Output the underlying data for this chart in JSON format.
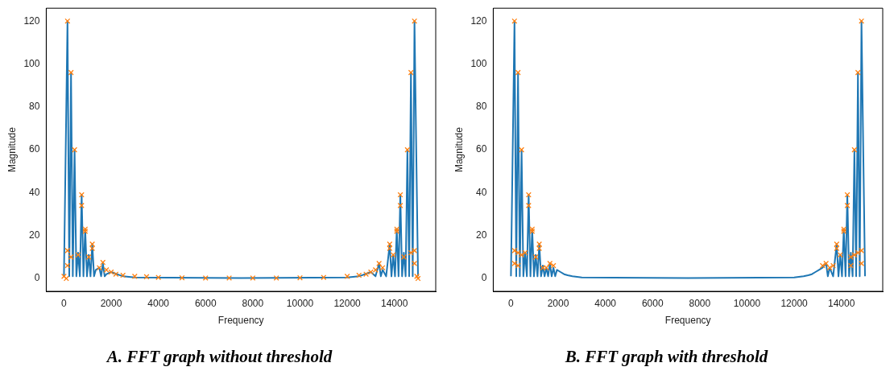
{
  "chart_data": [
    {
      "type": "line",
      "title": "A. FFT graph without threshold",
      "xlabel": "Frequency",
      "ylabel": "Magnitude",
      "xlim": [
        -750,
        15750
      ],
      "ylim": [
        -6,
        126
      ],
      "xticks": [
        0,
        2000,
        4000,
        6000,
        8000,
        10000,
        12000,
        14000
      ],
      "yticks": [
        0,
        20,
        40,
        60,
        80,
        100,
        120
      ],
      "grid": false,
      "legend": false,
      "series": [
        {
          "type": "line",
          "color": "#1f77b4",
          "marker": "none",
          "x": [
            0,
            150,
            225,
            300,
            375,
            450,
            525,
            600,
            675,
            750,
            825,
            900,
            975,
            1050,
            1125,
            1200,
            1275,
            1350,
            1500,
            1575,
            1650,
            1725,
            1800,
            2000,
            2500,
            3000,
            7500,
            12000,
            12500,
            13000,
            13200,
            13350,
            13425,
            13500,
            13650,
            13800,
            13875,
            13950,
            14025,
            14100,
            14175,
            14250,
            14325,
            14400,
            14475,
            14550,
            14625,
            14700,
            14775,
            14850,
            15000
          ],
          "values": [
            1,
            120,
            1,
            96,
            1,
            60,
            1,
            12,
            1,
            39,
            1,
            23,
            1,
            11,
            1,
            16,
            1,
            4,
            5,
            1,
            7,
            1,
            2,
            3,
            1,
            0.5,
            0.2,
            0.5,
            1,
            3,
            1,
            7,
            1,
            4,
            1,
            16,
            1,
            11,
            1,
            23,
            1,
            39,
            1,
            12,
            1,
            60,
            1,
            96,
            1,
            120,
            1
          ]
        },
        {
          "type": "scatter",
          "color": "#ff7f0e",
          "marker": "cross",
          "x": [
            150,
            300,
            450,
            750,
            750,
            900,
            900,
            1200,
            1200,
            150,
            150,
            300,
            600,
            1050,
            1650,
            1500,
            1800,
            2000,
            2200,
            2500,
            3000,
            3500,
            4000,
            5000,
            6000,
            7000,
            8000,
            9000,
            10000,
            11000,
            12000,
            12500,
            12800,
            13000,
            13200,
            13350,
            13500,
            13800,
            13800,
            13950,
            14100,
            14100,
            14250,
            14250,
            14550,
            14700,
            14850,
            14850,
            14850,
            14700,
            14400,
            0,
            100,
            15000,
            14950
          ],
          "values": [
            120,
            96,
            60,
            39,
            34,
            23,
            22,
            16,
            14,
            13,
            6,
            10,
            11,
            10,
            7.5,
            5,
            4,
            3,
            2,
            1.5,
            1,
            0.8,
            0.5,
            0.3,
            0.2,
            0.2,
            0.2,
            0.2,
            0.3,
            0.5,
            1,
            1.5,
            2,
            3,
            4,
            7,
            5,
            16,
            14,
            11,
            23,
            22,
            39,
            34,
            60,
            96,
            120,
            13,
            7,
            12,
            10,
            1,
            0,
            0,
            1
          ]
        }
      ]
    },
    {
      "type": "line",
      "title": "B. FFT graph with threshold",
      "xlabel": "Frequency",
      "ylabel": "Magnitude",
      "xlim": [
        -750,
        15750
      ],
      "ylim": [
        -6,
        126
      ],
      "xticks": [
        0,
        2000,
        4000,
        6000,
        8000,
        10000,
        12000,
        14000
      ],
      "yticks": [
        0,
        20,
        40,
        60,
        80,
        100,
        120
      ],
      "grid": false,
      "legend": false,
      "series": [
        {
          "type": "line",
          "color": "#1f77b4",
          "marker": "none",
          "x": [
            0,
            150,
            225,
            300,
            375,
            450,
            525,
            600,
            675,
            750,
            825,
            900,
            975,
            1050,
            1125,
            1200,
            1275,
            1350,
            1425,
            1500,
            1575,
            1650,
            1725,
            1800,
            1875,
            1950,
            2100,
            2250,
            2400,
            2600,
            3000,
            7500,
            12000,
            12400,
            12600,
            12750,
            12900,
            13050,
            13200,
            13350,
            13425,
            13500,
            13650,
            13800,
            13875,
            13950,
            14025,
            14100,
            14175,
            14250,
            14325,
            14400,
            14475,
            14550,
            14625,
            14700,
            14775,
            14850,
            15000
          ],
          "values": [
            1,
            120,
            1,
            96,
            1,
            60,
            1,
            12,
            1,
            39,
            1,
            23,
            1,
            11,
            1,
            16,
            1,
            6,
            1,
            5,
            1,
            7,
            1,
            5,
            1,
            4,
            3,
            2,
            1.5,
            1,
            0.5,
            0.2,
            0.5,
            1,
            1.5,
            2,
            3,
            4,
            5,
            7,
            1,
            5,
            1,
            16,
            1,
            11,
            1,
            23,
            1,
            39,
            1,
            12,
            1,
            60,
            1,
            96,
            1,
            120,
            1
          ]
        },
        {
          "type": "scatter",
          "color": "#ff7f0e",
          "marker": "cross",
          "x": [
            150,
            300,
            450,
            750,
            750,
            900,
            900,
            1200,
            1200,
            150,
            150,
            300,
            300,
            450,
            600,
            1050,
            1350,
            1500,
            1650,
            1800,
            13200,
            13350,
            13500,
            13650,
            13800,
            13800,
            13950,
            14100,
            14100,
            14250,
            14250,
            14400,
            14550,
            14700,
            14850,
            14850,
            14850,
            14700,
            14400,
            14550
          ],
          "values": [
            120,
            96,
            60,
            39,
            34,
            23,
            22,
            16,
            14,
            13,
            7,
            12,
            6,
            11,
            12,
            10,
            5,
            5,
            7,
            6,
            6,
            7,
            5,
            6,
            16,
            14,
            11,
            23,
            22,
            39,
            34,
            10,
            60,
            96,
            120,
            13,
            7,
            12,
            6,
            11
          ]
        }
      ]
    }
  ]
}
